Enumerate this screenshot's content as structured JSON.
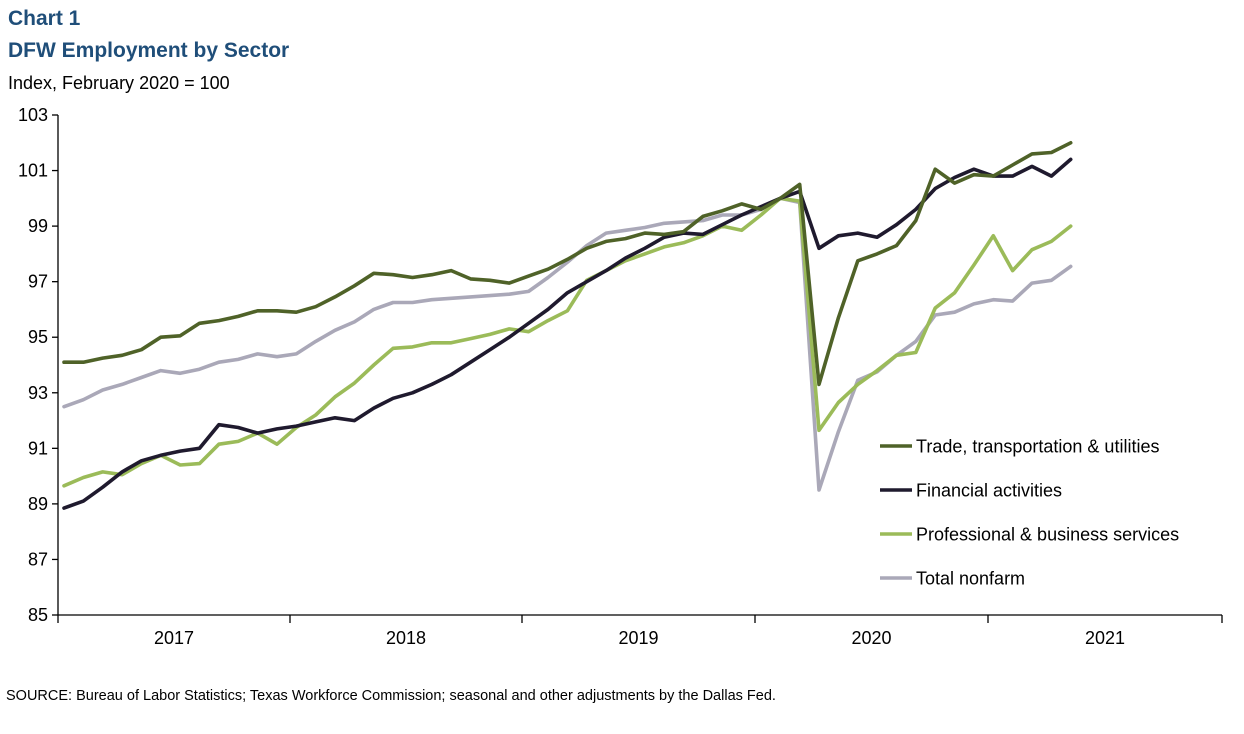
{
  "header": {
    "chart_label": "Chart 1",
    "title": "DFW Employment  by Sector",
    "unit": "Index, February 2020 = 100"
  },
  "source": "SOURCE:  Bureau of  Labor Statistics; Texas  Workforce Commission;  seasonal and other adjustments  by the Dallas Fed.",
  "chart_data": {
    "type": "line",
    "title": "DFW Employment  by Sector",
    "ylabel": "Index, February 2020 = 100",
    "xlabel": "",
    "ylim": [
      85,
      103
    ],
    "yticks": [
      85,
      87,
      89,
      91,
      93,
      95,
      97,
      99,
      101,
      103
    ],
    "x_tick_labels": [
      "2017",
      "2018",
      "2019",
      "2020",
      "2021"
    ],
    "x_start": "2016-07",
    "x_end": "2021-07",
    "grid": false,
    "legend_position": "right",
    "series": [
      {
        "name": "Trade, transportation & utilities",
        "color": "#4f6228",
        "values": [
          94.1,
          94.1,
          94.25,
          94.35,
          94.55,
          95.0,
          95.05,
          95.5,
          95.6,
          95.75,
          95.95,
          95.95,
          95.9,
          96.1,
          96.45,
          96.85,
          97.3,
          97.25,
          97.15,
          97.25,
          97.4,
          97.1,
          97.05,
          96.95,
          97.2,
          97.45,
          97.8,
          98.2,
          98.45,
          98.55,
          98.75,
          98.7,
          98.8,
          99.35,
          99.55,
          99.8,
          99.6,
          100.0,
          100.5,
          93.3,
          95.7,
          97.75,
          98.0,
          98.3,
          99.2,
          101.05,
          100.55,
          100.85,
          100.8,
          101.2,
          101.6,
          101.65,
          102.0
        ]
      },
      {
        "name": "Financial activities",
        "color": "#1f1a2e",
        "values": [
          88.85,
          89.1,
          89.6,
          90.15,
          90.55,
          90.75,
          90.9,
          91.0,
          91.85,
          91.75,
          91.55,
          91.7,
          91.8,
          91.95,
          92.1,
          92.0,
          92.45,
          92.8,
          93.0,
          93.3,
          93.65,
          94.1,
          94.55,
          95.0,
          95.5,
          96.0,
          96.6,
          97.0,
          97.4,
          97.85,
          98.2,
          98.6,
          98.75,
          98.7,
          99.05,
          99.4,
          99.7,
          100.0,
          100.25,
          98.2,
          98.65,
          98.75,
          98.6,
          99.05,
          99.6,
          100.35,
          100.75,
          101.05,
          100.8,
          100.8,
          101.15,
          100.8,
          101.4
        ]
      },
      {
        "name": "Professional & business services",
        "color": "#9bbb59",
        "values": [
          89.65,
          89.95,
          90.15,
          90.05,
          90.45,
          90.75,
          90.4,
          90.45,
          91.15,
          91.25,
          91.55,
          91.15,
          91.75,
          92.2,
          92.85,
          93.35,
          94.0,
          94.6,
          94.65,
          94.8,
          94.8,
          94.95,
          95.1,
          95.3,
          95.2,
          95.6,
          95.95,
          97.05,
          97.4,
          97.75,
          98.0,
          98.25,
          98.4,
          98.65,
          99.0,
          98.85,
          99.4,
          100.0,
          99.9,
          91.65,
          92.65,
          93.3,
          93.8,
          94.35,
          94.45,
          96.05,
          96.6,
          97.6,
          98.65,
          97.4,
          98.15,
          98.45,
          99.0
        ]
      },
      {
        "name": "Total nonfarm",
        "color": "#aaa8b8",
        "values": [
          92.5,
          92.75,
          93.1,
          93.3,
          93.55,
          93.8,
          93.7,
          93.85,
          94.1,
          94.2,
          94.4,
          94.3,
          94.4,
          94.85,
          95.25,
          95.55,
          96.0,
          96.25,
          96.25,
          96.35,
          96.4,
          96.45,
          96.5,
          96.55,
          96.65,
          97.15,
          97.7,
          98.3,
          98.75,
          98.85,
          98.95,
          99.1,
          99.15,
          99.2,
          99.4,
          99.4,
          99.6,
          100.0,
          99.85,
          89.5,
          91.6,
          93.45,
          93.75,
          94.35,
          94.85,
          95.8,
          95.9,
          96.2,
          96.35,
          96.3,
          96.95,
          97.05,
          97.55
        ]
      }
    ]
  }
}
